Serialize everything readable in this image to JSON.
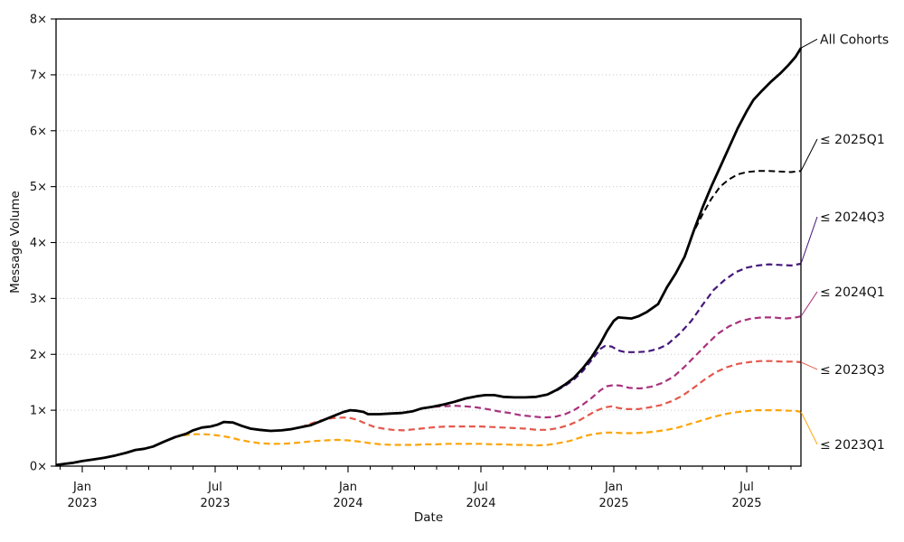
{
  "chart_data": {
    "type": "line",
    "title": "",
    "xlabel": "Date",
    "ylabel": "Message Volume",
    "ylim": [
      0,
      8
    ],
    "x_months_range": [
      -1.18,
      32.45
    ],
    "grid": "horizontal-dotted",
    "legend_position": "right-annotations",
    "yticks": [
      {
        "value": 0,
        "label": "0×"
      },
      {
        "value": 1,
        "label": "1×"
      },
      {
        "value": 2,
        "label": "2×"
      },
      {
        "value": 3,
        "label": "3×"
      },
      {
        "value": 4,
        "label": "4×"
      },
      {
        "value": 5,
        "label": "5×"
      },
      {
        "value": 6,
        "label": "6×"
      },
      {
        "value": 7,
        "label": "7×"
      },
      {
        "value": 8,
        "label": "8×"
      }
    ],
    "xticks_major": [
      {
        "month": 0,
        "line1": "Jan",
        "line2": "2023"
      },
      {
        "month": 6,
        "line1": "Jul",
        "line2": "2023"
      },
      {
        "month": 12,
        "line1": "Jan",
        "line2": "2024"
      },
      {
        "month": 18,
        "line1": "Jul",
        "line2": "2024"
      },
      {
        "month": 24,
        "line1": "Jan",
        "line2": "2025"
      },
      {
        "month": 30,
        "line1": "Jul",
        "line2": "2025"
      }
    ],
    "minor_tick_months": [
      -1,
      1,
      2,
      3,
      4,
      5,
      7,
      8,
      9,
      10,
      11,
      13,
      14,
      15,
      16,
      17,
      19,
      20,
      21,
      22,
      23,
      25,
      26,
      27,
      28,
      29,
      31,
      32
    ],
    "series": [
      {
        "id": "cohort-2023q1",
        "label": "≤ 2023Q1",
        "color": "#FCA50A",
        "style": "dashed",
        "width": 2.2,
        "annotation_value": 0.39,
        "points": [
          [
            3.7,
            0.44
          ],
          [
            4.2,
            0.52
          ],
          [
            4.7,
            0.56
          ],
          [
            5.1,
            0.57
          ],
          [
            5.5,
            0.57
          ],
          [
            5.9,
            0.56
          ],
          [
            6.3,
            0.54
          ],
          [
            6.7,
            0.51
          ],
          [
            7.1,
            0.47
          ],
          [
            7.5,
            0.44
          ],
          [
            8,
            0.41
          ],
          [
            8.5,
            0.4
          ],
          [
            9,
            0.4
          ],
          [
            9.5,
            0.41
          ],
          [
            10,
            0.43
          ],
          [
            10.5,
            0.45
          ],
          [
            11,
            0.46
          ],
          [
            11.5,
            0.47
          ],
          [
            12,
            0.46
          ],
          [
            12.5,
            0.44
          ],
          [
            13,
            0.41
          ],
          [
            13.5,
            0.39
          ],
          [
            14,
            0.38
          ],
          [
            14.5,
            0.38
          ],
          [
            15,
            0.38
          ],
          [
            15.5,
            0.39
          ],
          [
            16,
            0.39
          ],
          [
            16.5,
            0.4
          ],
          [
            17,
            0.4
          ],
          [
            17.5,
            0.4
          ],
          [
            18,
            0.4
          ],
          [
            18.5,
            0.39
          ],
          [
            19,
            0.39
          ],
          [
            19.5,
            0.38
          ],
          [
            20,
            0.38
          ],
          [
            20.5,
            0.37
          ],
          [
            21,
            0.38
          ],
          [
            21.5,
            0.41
          ],
          [
            22,
            0.45
          ],
          [
            22.4,
            0.5
          ],
          [
            22.8,
            0.55
          ],
          [
            23.2,
            0.58
          ],
          [
            23.6,
            0.6
          ],
          [
            24,
            0.6
          ],
          [
            24.4,
            0.59
          ],
          [
            24.9,
            0.59
          ],
          [
            25.4,
            0.6
          ],
          [
            25.9,
            0.62
          ],
          [
            26.4,
            0.65
          ],
          [
            26.9,
            0.69
          ],
          [
            27.4,
            0.75
          ],
          [
            27.9,
            0.81
          ],
          [
            28.4,
            0.87
          ],
          [
            28.9,
            0.92
          ],
          [
            29.4,
            0.96
          ],
          [
            29.9,
            0.98
          ],
          [
            30.4,
            1.0
          ],
          [
            30.9,
            1.0
          ],
          [
            31.4,
            1.0
          ],
          [
            31.9,
            0.99
          ],
          [
            32.2,
            0.99
          ],
          [
            32.45,
            0.97
          ]
        ]
      },
      {
        "id": "cohort-2023q3",
        "label": "≤ 2023Q3",
        "color": "#E4584C",
        "style": "dashed",
        "width": 2.2,
        "annotation_value": 1.73,
        "points": [
          [
            9.4,
            0.66
          ],
          [
            9.9,
            0.7
          ],
          [
            10.3,
            0.76
          ],
          [
            10.8,
            0.82
          ],
          [
            11.3,
            0.86
          ],
          [
            11.8,
            0.87
          ],
          [
            12.1,
            0.86
          ],
          [
            12.4,
            0.83
          ],
          [
            12.8,
            0.76
          ],
          [
            13.2,
            0.7
          ],
          [
            13.6,
            0.67
          ],
          [
            14,
            0.65
          ],
          [
            14.5,
            0.64
          ],
          [
            15,
            0.66
          ],
          [
            15.5,
            0.68
          ],
          [
            16,
            0.7
          ],
          [
            16.5,
            0.71
          ],
          [
            17,
            0.71
          ],
          [
            17.5,
            0.71
          ],
          [
            18,
            0.71
          ],
          [
            18.5,
            0.7
          ],
          [
            19,
            0.69
          ],
          [
            19.5,
            0.68
          ],
          [
            20,
            0.67
          ],
          [
            20.5,
            0.65
          ],
          [
            21,
            0.65
          ],
          [
            21.5,
            0.68
          ],
          [
            22,
            0.74
          ],
          [
            22.4,
            0.81
          ],
          [
            22.8,
            0.9
          ],
          [
            23.2,
            0.99
          ],
          [
            23.6,
            1.05
          ],
          [
            23.9,
            1.07
          ],
          [
            24.2,
            1.04
          ],
          [
            24.6,
            1.02
          ],
          [
            25.1,
            1.02
          ],
          [
            25.6,
            1.05
          ],
          [
            26.1,
            1.09
          ],
          [
            26.6,
            1.16
          ],
          [
            27.1,
            1.26
          ],
          [
            27.6,
            1.4
          ],
          [
            28.1,
            1.55
          ],
          [
            28.6,
            1.68
          ],
          [
            29.1,
            1.77
          ],
          [
            29.6,
            1.83
          ],
          [
            30.1,
            1.86
          ],
          [
            30.6,
            1.88
          ],
          [
            31.1,
            1.88
          ],
          [
            31.6,
            1.87
          ],
          [
            32.1,
            1.87
          ],
          [
            32.45,
            1.86
          ]
        ]
      },
      {
        "id": "cohort-2024q1",
        "label": "≤ 2024Q1",
        "color": "#A8327D",
        "style": "dashed",
        "width": 2.2,
        "annotation_value": 3.12,
        "points": [
          [
            15,
            0.99
          ],
          [
            15.3,
            1.03
          ],
          [
            15.8,
            1.06
          ],
          [
            16.3,
            1.07
          ],
          [
            16.8,
            1.08
          ],
          [
            17.3,
            1.07
          ],
          [
            17.8,
            1.05
          ],
          [
            18.3,
            1.02
          ],
          [
            18.8,
            0.98
          ],
          [
            19.3,
            0.95
          ],
          [
            19.8,
            0.91
          ],
          [
            20.3,
            0.89
          ],
          [
            20.8,
            0.87
          ],
          [
            21.3,
            0.88
          ],
          [
            21.8,
            0.93
          ],
          [
            22.2,
            1.0
          ],
          [
            22.6,
            1.1
          ],
          [
            23,
            1.22
          ],
          [
            23.4,
            1.36
          ],
          [
            23.7,
            1.43
          ],
          [
            24,
            1.45
          ],
          [
            24.3,
            1.44
          ],
          [
            24.7,
            1.4
          ],
          [
            25.2,
            1.39
          ],
          [
            25.7,
            1.42
          ],
          [
            26.2,
            1.49
          ],
          [
            26.7,
            1.6
          ],
          [
            27.2,
            1.78
          ],
          [
            27.7,
            1.98
          ],
          [
            28.2,
            2.18
          ],
          [
            28.7,
            2.37
          ],
          [
            29.2,
            2.5
          ],
          [
            29.7,
            2.59
          ],
          [
            30.2,
            2.64
          ],
          [
            30.7,
            2.66
          ],
          [
            31.2,
            2.66
          ],
          [
            31.7,
            2.64
          ],
          [
            32.1,
            2.65
          ],
          [
            32.45,
            2.68
          ]
        ]
      },
      {
        "id": "cohort-2024q3",
        "label": "≤ 2024Q3",
        "color": "#45187B",
        "style": "dashed",
        "width": 2.2,
        "annotation_value": 4.46,
        "points": [
          [
            21,
            1.28
          ],
          [
            21.4,
            1.35
          ],
          [
            21.8,
            1.44
          ],
          [
            22.2,
            1.55
          ],
          [
            22.6,
            1.7
          ],
          [
            23,
            1.9
          ],
          [
            23.4,
            2.1
          ],
          [
            23.6,
            2.15
          ],
          [
            23.9,
            2.14
          ],
          [
            24.2,
            2.07
          ],
          [
            24.5,
            2.04
          ],
          [
            25,
            2.04
          ],
          [
            25.5,
            2.05
          ],
          [
            26,
            2.1
          ],
          [
            26.4,
            2.17
          ],
          [
            27,
            2.38
          ],
          [
            27.5,
            2.6
          ],
          [
            28,
            2.88
          ],
          [
            28.5,
            3.15
          ],
          [
            29,
            3.33
          ],
          [
            29.5,
            3.47
          ],
          [
            30,
            3.55
          ],
          [
            30.5,
            3.59
          ],
          [
            31,
            3.61
          ],
          [
            31.5,
            3.6
          ],
          [
            32,
            3.59
          ],
          [
            32.45,
            3.62
          ]
        ]
      },
      {
        "id": "cohort-2025q1",
        "label": "≤ 2025Q1",
        "color": "#000000",
        "style": "dashed",
        "width": 2.0,
        "annotation_value": 5.85,
        "points": [
          [
            27.2,
            3.75
          ],
          [
            27.6,
            4.19
          ],
          [
            28,
            4.5
          ],
          [
            28.4,
            4.78
          ],
          [
            28.8,
            5.0
          ],
          [
            29.2,
            5.13
          ],
          [
            29.6,
            5.22
          ],
          [
            30,
            5.26
          ],
          [
            30.5,
            5.28
          ],
          [
            31,
            5.28
          ],
          [
            31.5,
            5.27
          ],
          [
            32,
            5.26
          ],
          [
            32.45,
            5.28
          ]
        ]
      },
      {
        "id": "all-cohorts",
        "label": "All Cohorts",
        "color": "#000000",
        "style": "solid",
        "width": 2.8,
        "annotation_value": 7.64,
        "points": [
          [
            -1.18,
            0.02
          ],
          [
            -0.8,
            0.04
          ],
          [
            -0.4,
            0.06
          ],
          [
            0,
            0.09
          ],
          [
            0.5,
            0.12
          ],
          [
            1,
            0.15
          ],
          [
            1.5,
            0.19
          ],
          [
            2,
            0.24
          ],
          [
            2.4,
            0.29
          ],
          [
            2.8,
            0.31
          ],
          [
            3.2,
            0.35
          ],
          [
            3.7,
            0.44
          ],
          [
            4.2,
            0.52
          ],
          [
            4.7,
            0.58
          ],
          [
            5,
            0.64
          ],
          [
            5.4,
            0.69
          ],
          [
            5.8,
            0.71
          ],
          [
            6.1,
            0.74
          ],
          [
            6.4,
            0.79
          ],
          [
            6.8,
            0.78
          ],
          [
            7.2,
            0.72
          ],
          [
            7.6,
            0.67
          ],
          [
            8,
            0.65
          ],
          [
            8.5,
            0.63
          ],
          [
            9,
            0.64
          ],
          [
            9.4,
            0.66
          ],
          [
            9.9,
            0.7
          ],
          [
            10.3,
            0.73
          ],
          [
            10.8,
            0.81
          ],
          [
            11.3,
            0.89
          ],
          [
            11.8,
            0.97
          ],
          [
            12.1,
            1.0
          ],
          [
            12.4,
            0.99
          ],
          [
            12.7,
            0.97
          ],
          [
            12.9,
            0.93
          ],
          [
            13.4,
            0.93
          ],
          [
            13.9,
            0.94
          ],
          [
            14.4,
            0.95
          ],
          [
            14.9,
            0.98
          ],
          [
            15.3,
            1.03
          ],
          [
            15.8,
            1.06
          ],
          [
            16.3,
            1.1
          ],
          [
            16.8,
            1.15
          ],
          [
            17.3,
            1.21
          ],
          [
            17.8,
            1.25
          ],
          [
            18.2,
            1.27
          ],
          [
            18.6,
            1.27
          ],
          [
            19,
            1.24
          ],
          [
            19.5,
            1.23
          ],
          [
            20,
            1.23
          ],
          [
            20.5,
            1.24
          ],
          [
            21,
            1.28
          ],
          [
            21.4,
            1.36
          ],
          [
            21.8,
            1.46
          ],
          [
            22.2,
            1.58
          ],
          [
            22.6,
            1.75
          ],
          [
            23,
            1.95
          ],
          [
            23.4,
            2.2
          ],
          [
            23.7,
            2.42
          ],
          [
            24,
            2.6
          ],
          [
            24.2,
            2.66
          ],
          [
            24.5,
            2.65
          ],
          [
            24.8,
            2.64
          ],
          [
            25.1,
            2.68
          ],
          [
            25.5,
            2.76
          ],
          [
            26,
            2.9
          ],
          [
            26.4,
            3.2
          ],
          [
            26.8,
            3.45
          ],
          [
            27.2,
            3.75
          ],
          [
            27.6,
            4.2
          ],
          [
            28,
            4.62
          ],
          [
            28.4,
            5.0
          ],
          [
            28.8,
            5.35
          ],
          [
            29.2,
            5.7
          ],
          [
            29.6,
            6.05
          ],
          [
            30,
            6.35
          ],
          [
            30.3,
            6.55
          ],
          [
            30.7,
            6.72
          ],
          [
            31.1,
            6.88
          ],
          [
            31.5,
            7.02
          ],
          [
            31.9,
            7.18
          ],
          [
            32.2,
            7.32
          ],
          [
            32.45,
            7.48
          ]
        ]
      }
    ]
  }
}
